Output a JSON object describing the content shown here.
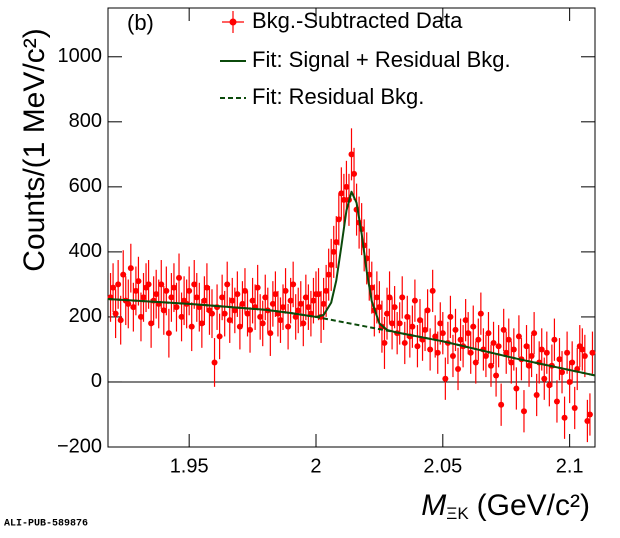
{
  "chart_data": {
    "type": "errorbar",
    "label": "(b)",
    "ylabel": "Counts/(1 MeV/c²)",
    "xlabel": {
      "symbol": "M",
      "subscript": "ΞK",
      "unit": "(GeV/c²)"
    },
    "footer": "ALI-PUB-589876",
    "xlim": [
      1.918,
      2.11
    ],
    "xticks": [
      1.95,
      2,
      2.05,
      2.1
    ],
    "ylim": [
      -200,
      1150
    ],
    "yticks": [
      {
        "value": -200,
        "label": "−200"
      },
      0,
      200,
      400,
      600,
      800,
      1000
    ],
    "zero_line": true,
    "series": [
      {
        "name": "Bkg.-Subtracted Data",
        "color": "#ff0000",
        "mark": "points",
        "x": [
          1.919,
          1.92,
          1.921,
          1.922,
          1.923,
          1.924,
          1.925,
          1.926,
          1.927,
          1.928,
          1.929,
          1.93,
          1.931,
          1.932,
          1.933,
          1.934,
          1.935,
          1.936,
          1.937,
          1.938,
          1.939,
          1.94,
          1.941,
          1.942,
          1.943,
          1.944,
          1.945,
          1.946,
          1.947,
          1.948,
          1.949,
          1.95,
          1.951,
          1.952,
          1.953,
          1.954,
          1.955,
          1.956,
          1.957,
          1.958,
          1.959,
          1.96,
          1.961,
          1.962,
          1.963,
          1.964,
          1.965,
          1.966,
          1.967,
          1.968,
          1.969,
          1.97,
          1.971,
          1.972,
          1.973,
          1.974,
          1.975,
          1.976,
          1.977,
          1.978,
          1.979,
          1.98,
          1.981,
          1.982,
          1.983,
          1.984,
          1.985,
          1.986,
          1.987,
          1.988,
          1.989,
          1.99,
          1.991,
          1.992,
          1.993,
          1.994,
          1.995,
          1.996,
          1.997,
          1.998,
          1.999,
          2.0,
          2.001,
          2.002,
          2.003,
          2.004,
          2.005,
          2.006,
          2.007,
          2.008,
          2.009,
          2.01,
          2.011,
          2.012,
          2.013,
          2.014,
          2.015,
          2.016,
          2.017,
          2.018,
          2.019,
          2.02,
          2.021,
          2.022,
          2.023,
          2.024,
          2.025,
          2.026,
          2.027,
          2.028,
          2.029,
          2.03,
          2.031,
          2.032,
          2.033,
          2.034,
          2.035,
          2.036,
          2.037,
          2.038,
          2.039,
          2.04,
          2.041,
          2.042,
          2.043,
          2.044,
          2.045,
          2.046,
          2.047,
          2.048,
          2.049,
          2.05,
          2.051,
          2.052,
          2.053,
          2.054,
          2.055,
          2.056,
          2.057,
          2.058,
          2.059,
          2.06,
          2.061,
          2.062,
          2.063,
          2.064,
          2.065,
          2.066,
          2.067,
          2.068,
          2.069,
          2.07,
          2.071,
          2.072,
          2.073,
          2.074,
          2.075,
          2.076,
          2.077,
          2.078,
          2.079,
          2.08,
          2.081,
          2.082,
          2.083,
          2.084,
          2.085,
          2.086,
          2.087,
          2.088,
          2.089,
          2.09,
          2.091,
          2.092,
          2.093,
          2.094,
          2.095,
          2.096,
          2.097,
          2.098,
          2.099,
          2.1,
          2.101,
          2.102,
          2.103,
          2.104,
          2.105,
          2.106,
          2.107,
          2.108,
          2.109
        ],
        "values": [
          260,
          290,
          210,
          300,
          190,
          330,
          250,
          240,
          350,
          230,
          280,
          310,
          200,
          260,
          290,
          300,
          180,
          250,
          270,
          240,
          300,
          220,
          280,
          150,
          260,
          290,
          230,
          320,
          200,
          250,
          240,
          280,
          170,
          300,
          260,
          230,
          180,
          250,
          290,
          220,
          210,
          60,
          230,
          140,
          260,
          210,
          300,
          190,
          250,
          220,
          270,
          170,
          240,
          280,
          210,
          160,
          250,
          230,
          290,
          200,
          180,
          260,
          220,
          150,
          240,
          270,
          210,
          190,
          230,
          280,
          170,
          250,
          300,
          200,
          220,
          240,
          180,
          260,
          230,
          210,
          250,
          270,
          270,
          200,
          240,
          280,
          330,
          360,
          400,
          430,
          500,
          580,
          560,
          600,
          560,
          700,
          640,
          530,
          490,
          470,
          420,
          380,
          330,
          290,
          220,
          260,
          230,
          170,
          120,
          210,
          260,
          180,
          230,
          150,
          180,
          260,
          120,
          200,
          140,
          170,
          250,
          110,
          190,
          130,
          160,
          220,
          100,
          280,
          140,
          90,
          180,
          150,
          10,
          120,
          200,
          80,
          160,
          40,
          130,
          110,
          190,
          150,
          90,
          170,
          60,
          130,
          210,
          100,
          80,
          150,
          50,
          120,
          20,
          110,
          -70,
          160,
          90,
          130,
          60,
          100,
          -20,
          140,
          70,
          -90,
          110,
          50,
          80,
          150,
          -40,
          60,
          100,
          10,
          90,
          -10,
          50,
          130,
          -60,
          70,
          30,
          -110,
          90,
          0,
          60,
          -80,
          40,
          110,
          100,
          80,
          -120,
          -100,
          90
        ],
        "errors": [
          75,
          75,
          75,
          75,
          75,
          75,
          75,
          75,
          75,
          75,
          75,
          75,
          75,
          75,
          75,
          75,
          75,
          75,
          75,
          75,
          75,
          75,
          75,
          75,
          75,
          75,
          75,
          75,
          75,
          75,
          75,
          75,
          75,
          75,
          75,
          75,
          75,
          75,
          75,
          75,
          75,
          75,
          70,
          70,
          70,
          70,
          70,
          70,
          70,
          70,
          70,
          70,
          70,
          70,
          70,
          70,
          70,
          70,
          70,
          70,
          70,
          70,
          70,
          70,
          70,
          70,
          70,
          70,
          70,
          70,
          70,
          70,
          70,
          70,
          70,
          70,
          70,
          70,
          70,
          70,
          70,
          70,
          80,
          80,
          80,
          80,
          80,
          80,
          80,
          80,
          80,
          80,
          80,
          80,
          80,
          80,
          80,
          80,
          80,
          80,
          80,
          80,
          80,
          80,
          80,
          80,
          80,
          80,
          80,
          80,
          80,
          80,
          65,
          65,
          65,
          65,
          65,
          65,
          65,
          65,
          65,
          65,
          65,
          65,
          65,
          65,
          65,
          65,
          65,
          65,
          65,
          65,
          65,
          65,
          65,
          65,
          65,
          65,
          65,
          65,
          65,
          65,
          65,
          65,
          65,
          65,
          65,
          65,
          65,
          65,
          65,
          65,
          65,
          65,
          65,
          65,
          65,
          65,
          65,
          65,
          65,
          65,
          65,
          65,
          65,
          65,
          65,
          65,
          65,
          65,
          65,
          65,
          65,
          65,
          65,
          65,
          65,
          65,
          65,
          65,
          65,
          65,
          65,
          65,
          65,
          65,
          65,
          65,
          65,
          65,
          65
        ]
      },
      {
        "name": "Fit: Signal + Residual Bkg.",
        "color": "#0b4a0b",
        "mark": "line",
        "dash": false,
        "x": [
          1.918,
          1.95,
          1.98,
          1.99,
          2.0,
          2.003,
          2.006,
          2.008,
          2.01,
          2.012,
          2.014,
          2.016,
          2.018,
          2.02,
          2.022,
          2.025,
          2.028,
          2.032,
          2.04,
          2.05,
          2.08,
          2.11
        ],
        "values": [
          255,
          240,
          222,
          212,
          200,
          206,
          244,
          312,
          417,
          527,
          585,
          551,
          456,
          340,
          248,
          180,
          160,
          152,
          140,
          125,
          70,
          20
        ]
      },
      {
        "name": "Fit: Residual Bkg.",
        "color": "#0b4a0b",
        "mark": "line",
        "dash": true,
        "x": [
          1.918,
          1.95,
          1.98,
          1.99,
          2.0,
          2.02,
          2.05,
          2.08,
          2.11
        ],
        "values": [
          255,
          240,
          222,
          212,
          200,
          170,
          125,
          70,
          20
        ]
      }
    ]
  }
}
